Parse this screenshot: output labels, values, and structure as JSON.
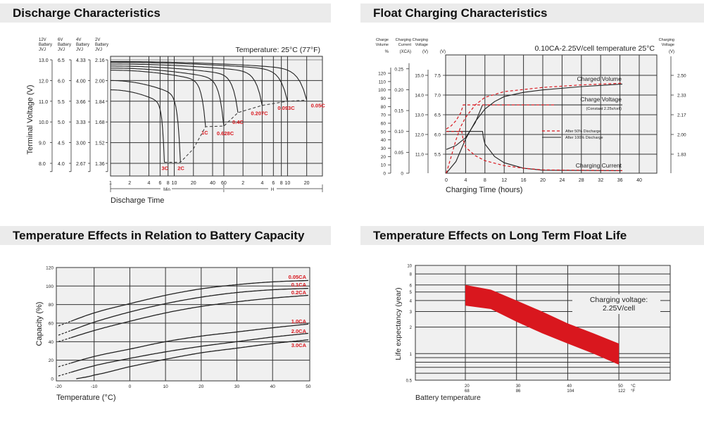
{
  "titles": {
    "discharge": "Discharge Characteristics",
    "float": "Float Charging Characteristics",
    "temp_capacity": "Temperature Effects in Relation to Battery Capacity",
    "float_life": "Temperature Effects on Long Term Float Life"
  },
  "colors": {
    "red": "#d9171e",
    "plot_bg": "#f0f0f0",
    "grid": "#333333",
    "band": "#ebebeb"
  },
  "chart_data": [
    {
      "type": "line",
      "title": "Discharge Characteristics",
      "annotation": "Temperature: 25°C (77°F)",
      "xlabel": "Discharge Time",
      "ylabel": "Terminal Voltage (V)",
      "x_scale": "log",
      "x_unit": "minutes",
      "xlim": [
        1,
        2100
      ],
      "ylim": [
        7.4,
        13.2
      ],
      "grid": true,
      "x_ticks": [
        {
          "min": 1,
          "label": "1"
        },
        {
          "min": 2,
          "label": "2"
        },
        {
          "min": 4,
          "label": "4"
        },
        {
          "min": 6,
          "label": "6"
        },
        {
          "min": 8,
          "label": "8"
        },
        {
          "min": 10,
          "label": "10"
        },
        {
          "min": 20,
          "label": "20"
        },
        {
          "min": 40,
          "label": "40"
        },
        {
          "min": 60,
          "label": "60"
        },
        {
          "min": 120,
          "label": "2"
        },
        {
          "min": 240,
          "label": "4"
        },
        {
          "min": 360,
          "label": "6"
        },
        {
          "min": 480,
          "label": "8"
        },
        {
          "min": 600,
          "label": "10"
        },
        {
          "min": 1200,
          "label": "20"
        }
      ],
      "range_labels": {
        "min": "Min",
        "hour": "H"
      },
      "voltage_axes": [
        {
          "header": [
            "12V",
            "Battery",
            "JVJ"
          ],
          "ticks": [
            "13.0",
            "12.0",
            "11.0",
            "10.0",
            "9.0",
            "8.0"
          ]
        },
        {
          "header": [
            "6V",
            "Battery",
            "JVJ"
          ],
          "ticks": [
            "6.5",
            "6.0",
            "5.5",
            "5.0",
            "4.5",
            "4.0"
          ]
        },
        {
          "header": [
            "4V",
            "Battery",
            "JVJ"
          ],
          "ticks": [
            "4.33",
            "4.00",
            "3.66",
            "3.33",
            "3.00",
            "2.67"
          ]
        },
        {
          "header": [
            "2V",
            "Battery",
            "JVJ"
          ],
          "ticks": [
            "2.16",
            "2.00",
            "1.84",
            "1.68",
            "1.52",
            "1.36"
          ]
        }
      ],
      "y_tick_values_12v": [
        13,
        12,
        11,
        10,
        9,
        8
      ],
      "series": [
        {
          "name": "0.05C",
          "start_v": 12.92,
          "end_min": 1200,
          "end_v": 11.05
        },
        {
          "name": "0.093C",
          "start_v": 12.88,
          "end_min": 600,
          "end_v": 11.0
        },
        {
          "name": "0.207C",
          "start_v": 12.8,
          "end_min": 240,
          "end_v": 10.8
        },
        {
          "name": "0.4C",
          "start_v": 12.7,
          "end_min": 100,
          "end_v": 10.45
        },
        {
          "name": "0.628C",
          "start_v": 12.6,
          "end_min": 60,
          "end_v": 9.8
        },
        {
          "name": "1C",
          "start_v": 12.5,
          "end_min": 31,
          "end_v": 9.77
        },
        {
          "name": "2C",
          "start_v": 12.0,
          "end_min": 12.5,
          "end_v": 8.05
        },
        {
          "name": "3C",
          "start_v": 11.55,
          "end_min": 7,
          "end_v": 8.05
        }
      ],
      "end_voltage_line": [
        [
          7,
          8.05
        ],
        [
          12.5,
          8.05
        ],
        [
          20,
          8.7
        ],
        [
          31,
          9.77
        ],
        [
          60,
          9.8
        ],
        [
          100,
          10.45
        ],
        [
          240,
          10.8
        ],
        [
          600,
          11.0
        ],
        [
          1200,
          11.05
        ]
      ]
    },
    {
      "type": "line",
      "title": "Float Charging Characteristics",
      "annotation": "0.10CA-2.25V/cell  temperature 25°C",
      "xlabel": "Charging Time (hours)",
      "xlim": [
        0,
        44
      ],
      "x_ticks": [
        0,
        4,
        8,
        12,
        16,
        20,
        24,
        28,
        32,
        36,
        40
      ],
      "grid": true,
      "axes": {
        "volume": {
          "header": [
            "Charge",
            "Volume"
          ],
          "unit": "%",
          "ticks": [
            0,
            10,
            20,
            30,
            40,
            50,
            60,
            70,
            80,
            90,
            100,
            110,
            120
          ]
        },
        "current": {
          "header": [
            "Charging",
            "Current"
          ],
          "unit": "(XCA)",
          "ticks": [
            "0",
            "0.05",
            "0.10",
            "0.15",
            "0.20",
            "0.25"
          ]
        },
        "voltage12": {
          "header": [
            "Charging",
            "Voltage"
          ],
          "unit": "(V)",
          "ticks": [
            "11.0",
            "12.0",
            "13.0",
            "14.0",
            "15.0"
          ]
        },
        "voltage6": {
          "header": [],
          "unit": "(V)",
          "ticks": [
            "5.5",
            "6.0",
            "6.5",
            "7.0",
            "7.5"
          ]
        },
        "voltage2": {
          "header": [
            "Charging",
            "Voltage"
          ],
          "unit": "(V)",
          "ticks": [
            "1.83",
            "2.00",
            "2.17",
            "2.33",
            "2.50"
          ]
        }
      },
      "curve_labels": {
        "volume": "Charged Volume",
        "voltage": "Charge Voltage",
        "voltage_note": "(Constant 2.25v/cell)",
        "current": "Charging Current"
      },
      "legend": {
        "placement": "center-right",
        "after50": "After  50% Discharge",
        "after100": "After 100% Discharge"
      },
      "series": [
        {
          "name": "After 100% Discharge",
          "quantity": "volume_pct",
          "style": "solid-black",
          "points": [
            [
              0,
              0
            ],
            [
              2,
              14
            ],
            [
              4,
              41
            ],
            [
              6,
              62
            ],
            [
              8,
              77
            ],
            [
              10,
              86
            ],
            [
              12,
              92
            ],
            [
              16,
              97
            ],
            [
              20,
              100
            ],
            [
              28,
              104
            ],
            [
              36.5,
              107
            ]
          ]
        },
        {
          "name": "After 50% Discharge",
          "quantity": "volume_pct",
          "style": "dashed-red",
          "points": [
            [
              0,
              0
            ],
            [
              1,
              20
            ],
            [
              2,
              40
            ],
            [
              3,
              56
            ],
            [
              4,
              67
            ],
            [
              6,
              82
            ],
            [
              8,
              91
            ],
            [
              12,
              98
            ],
            [
              20,
              103
            ],
            [
              28,
              106
            ],
            [
              36.5,
              108
            ]
          ]
        },
        {
          "name": "After 100% Discharge",
          "quantity": "voltage_6v",
          "style": "solid-black",
          "points": [
            [
              0,
              5.62
            ],
            [
              2,
              5.72
            ],
            [
              4,
              5.92
            ],
            [
              6,
              6.3
            ],
            [
              7.5,
              6.75
            ],
            [
              36.5,
              6.75
            ]
          ]
        },
        {
          "name": "After 50% Discharge",
          "quantity": "voltage_6v",
          "style": "dashed-red",
          "points": [
            [
              0,
              6.14
            ],
            [
              1,
              6.22
            ],
            [
              2,
              6.35
            ],
            [
              3,
              6.55
            ],
            [
              3.5,
              6.75
            ],
            [
              22.5,
              6.75
            ]
          ]
        },
        {
          "name": "After 100% Discharge",
          "quantity": "current_ca",
          "style": "solid-black",
          "points": [
            [
              0,
              0.1
            ],
            [
              7.5,
              0.1
            ],
            [
              7.7,
              0.085
            ],
            [
              8,
              0.07
            ],
            [
              10,
              0.04
            ],
            [
              12,
              0.025
            ],
            [
              16,
              0.012
            ],
            [
              20,
              0.007
            ],
            [
              36.5,
              0.006
            ]
          ]
        },
        {
          "name": "After 50% Discharge",
          "quantity": "current_ca",
          "style": "dashed-red",
          "points": [
            [
              0,
              0.1
            ],
            [
              3.2,
              0.1
            ],
            [
              3.5,
              0.08
            ],
            [
              4,
              0.062
            ],
            [
              6,
              0.042
            ],
            [
              8,
              0.03
            ],
            [
              12,
              0.018
            ],
            [
              16,
              0.012
            ],
            [
              20,
              0.008
            ],
            [
              36.5,
              0.006
            ]
          ]
        }
      ]
    },
    {
      "type": "line",
      "title": "Temperature Effects in Relation to Battery Capacity",
      "xlabel": "Temperature (°C)",
      "ylabel": "Capacity (%)",
      "xlim": [
        -20.5,
        50.5
      ],
      "ylim": [
        -2,
        120
      ],
      "x_ticks": [
        -20,
        -10,
        0,
        10,
        20,
        30,
        40,
        50
      ],
      "y_ticks": [
        0,
        20,
        40,
        60,
        80,
        100,
        120
      ],
      "grid": true,
      "x": [
        -20,
        -10,
        0,
        10,
        20,
        30,
        40,
        50
      ],
      "series": [
        {
          "name": "0.05CA",
          "values": [
            57,
            71,
            81,
            90,
            97,
            101.5,
            104.5,
            106
          ]
        },
        {
          "name": "0.1CA",
          "values": [
            47,
            61,
            72,
            81,
            88,
            93,
            96,
            97.5
          ]
        },
        {
          "name": "0.2CA",
          "values": [
            40,
            52,
            62,
            71,
            78,
            83,
            87,
            90
          ]
        },
        {
          "name": "1.0CA",
          "values": [
            13,
            24,
            32,
            40,
            46,
            50.5,
            55,
            59
          ]
        },
        {
          "name": "2.0CA",
          "values": [
            3,
            14,
            22,
            29,
            35,
            40,
            45,
            49
          ]
        },
        {
          "name": "3.0CA",
          "values": [
            null,
            4,
            13,
            21,
            28,
            33,
            38,
            42
          ],
          "start": [
            -15,
            0
          ]
        }
      ]
    },
    {
      "type": "area",
      "title": "Temperature Effects on Long Term Float Life",
      "xlabel": "Battery temperature",
      "ylabel": "Life expectancy (year)",
      "y_scale": "log",
      "xlim": [
        10.2,
        60
      ],
      "ylim": [
        0.5,
        10
      ],
      "grid": true,
      "x_ticks": [
        {
          "c": 20,
          "c_label": "20",
          "f_label": "68"
        },
        {
          "c": 30,
          "c_label": "30",
          "f_label": "86"
        },
        {
          "c": 40,
          "c_label": "40",
          "f_label": "104"
        },
        {
          "c": 50,
          "c_label": "50",
          "f_label": "122"
        }
      ],
      "unit_labels": {
        "c": "°C",
        "f": "°F"
      },
      "y_ticks": [
        {
          "v": 10,
          "label": "10"
        },
        {
          "v": 8,
          "label": "8"
        },
        {
          "v": 6,
          "label": "6"
        },
        {
          "v": 5,
          "label": "5"
        },
        {
          "v": 4,
          "label": "4"
        },
        {
          "v": 3,
          "label": "3"
        },
        {
          "v": 2,
          "label": "2"
        },
        {
          "v": 1,
          "label": "1"
        },
        {
          "v": 0.5,
          "label": "0.5"
        }
      ],
      "y_grid": [
        10,
        8,
        6,
        5,
        4,
        3,
        2,
        1,
        0.9,
        0.8,
        0.7,
        0.6,
        0.5
      ],
      "annotation": [
        "Charging voltage:",
        "2.25V/cell"
      ],
      "band": {
        "x": [
          20,
          25,
          30,
          35,
          40,
          45,
          50
        ],
        "upper": [
          6,
          5.3,
          4,
          3,
          2.2,
          1.7,
          1.3
        ],
        "lower": [
          3.5,
          3.2,
          2.3,
          1.7,
          1.3,
          1.0,
          0.75
        ]
      }
    }
  ]
}
